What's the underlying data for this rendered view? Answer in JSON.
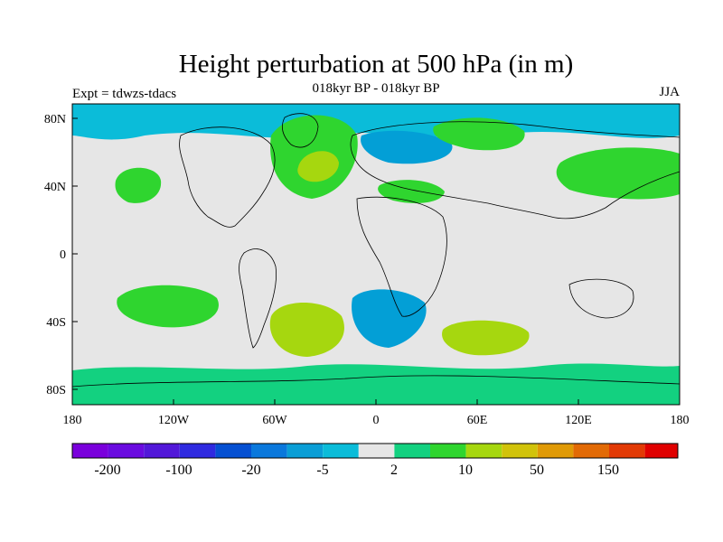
{
  "header": {
    "title": "Height perturbation at 500 hPa (in m)",
    "left_label": "Expt = tdwzs-tdacs",
    "center_label": "018kyr BP - 018kyr BP",
    "right_label": "JJA"
  },
  "map": {
    "lat_ticks": [
      "80N",
      "40N",
      "0",
      "40S",
      "80S"
    ],
    "lon_ticks": [
      "180",
      "120W",
      "60W",
      "0",
      "60E",
      "120E",
      "180"
    ],
    "land_fill": "none",
    "background_color": "#e6e6e6",
    "contours": [
      {
        "name": "arctic-band",
        "level": "-5",
        "color": "#0bbcd9"
      },
      {
        "name": "n-atlantic-ridge",
        "level": "10",
        "color": "#2fd52f"
      },
      {
        "name": "n-atlantic-core",
        "level": "50",
        "color": "#a6d70f"
      },
      {
        "name": "greenland-sea-low",
        "level": "-20",
        "color": "#039fd6"
      },
      {
        "name": "russia-high",
        "level": "10",
        "color": "#2fd52f"
      },
      {
        "name": "mediterranean-high",
        "level": "10",
        "color": "#2fd52f"
      },
      {
        "name": "n-pacific-high",
        "level": "10",
        "color": "#2fd52f"
      },
      {
        "name": "ne-asia-high",
        "level": "10",
        "color": "#2fd52f"
      },
      {
        "name": "s-pacific-high",
        "level": "10",
        "color": "#2fd52f"
      },
      {
        "name": "s-atlantic-high",
        "level": "50",
        "color": "#a6d70f"
      },
      {
        "name": "s-atlantic-low",
        "level": "-20",
        "color": "#039fd6"
      },
      {
        "name": "s-indian-high",
        "level": "50",
        "color": "#a6d70f"
      },
      {
        "name": "southern-ocean-band",
        "level": "2",
        "color": "#13d180"
      }
    ]
  },
  "colorbar": {
    "colors": [
      "#7a00dc",
      "#6a0be0",
      "#5218d9",
      "#2f2ae0",
      "#0550d2",
      "#0a78dc",
      "#0a9ed6",
      "#0bbcd9",
      "#e6e6e6",
      "#13d180",
      "#2fd52f",
      "#a6d70f",
      "#d1c30a",
      "#e09a06",
      "#e26a05",
      "#e23a05",
      "#e00000"
    ],
    "labels": [
      "-200",
      "-100",
      "-20",
      "-5",
      "2",
      "10",
      "50",
      "150"
    ]
  }
}
